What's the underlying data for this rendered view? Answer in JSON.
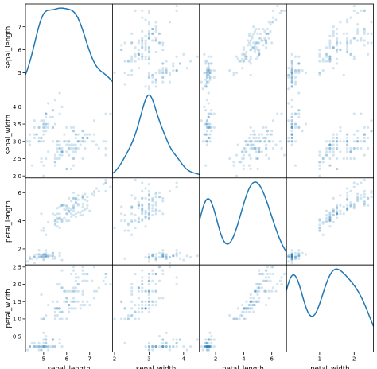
{
  "chart_data": {
    "type": "scatter_matrix",
    "variables": [
      "sepal_length",
      "sepal_width",
      "petal_length",
      "petal_width"
    ],
    "ranges": {
      "sepal_length": [
        4.3,
        7.9
      ],
      "sepal_width": [
        2.0,
        4.4
      ],
      "petal_length": [
        1.0,
        6.9
      ],
      "petal_width": [
        0.1,
        2.5
      ]
    },
    "ticks": {
      "sepal_length": [
        5,
        6,
        7
      ],
      "sepal_width": [
        2,
        3,
        4
      ],
      "petal_length": [
        2,
        4,
        6
      ],
      "petal_width": [
        1,
        2
      ]
    },
    "left_ticks": {
      "sepal_length": [
        5,
        6,
        7
      ],
      "sepal_width": [
        2.0,
        2.5,
        3.0,
        3.5,
        4.0
      ],
      "petal_length": [
        2,
        4,
        6
      ],
      "petal_width": [
        0.5,
        1.0,
        1.5,
        2.0,
        2.5
      ]
    },
    "left_tick_labels": {
      "sepal_length": [
        "5",
        "6",
        "7"
      ],
      "sepal_width": [
        "2.0",
        "2.5",
        "3.0",
        "3.5",
        "4.0"
      ],
      "petal_length": [
        "2",
        "4",
        "6"
      ],
      "petal_width": [
        "0.5",
        "1.0",
        "1.5",
        "2.0",
        "2.5"
      ]
    },
    "bottom_tick_labels": {
      "sepal_length": [
        "5",
        "6",
        "7"
      ],
      "sepal_width": [
        "2",
        "3",
        "4"
      ],
      "petal_length": [
        "2",
        "4",
        "6"
      ],
      "petal_width": [
        "1",
        "2"
      ]
    },
    "diagonal": "kde",
    "point_color": "#1f77b4",
    "point_alpha": 0.2,
    "line_color": "#1f77b4",
    "columns": [
      "5.1,3.5,1.4,0.2 4.9,3.0,1.4,0.2 4.7,3.2,1.3,0.2 4.6,3.1,1.5,0.2 5.0,3.6,1.4,0.2 5.4,3.9,1.7,0.4 4.6,3.4,1.4,0.3 5.0,3.4,1.5,0.2 4.4,2.9,1.4,0.2 4.9,3.1,1.5,0.1 5.4,3.7,1.5,0.2 4.8,3.4,1.6,0.2 4.8,3.0,1.4,0.1 4.3,3.0,1.1,0.1 5.8,4.0,1.2,0.2 5.7,4.4,1.5,0.4 5.4,3.9,1.3,0.4 5.1,3.5,1.4,0.3 5.7,3.8,1.7,0.3 5.1,3.8,1.5,0.3 5.4,3.4,1.7,0.2 5.1,3.7,1.5,0.4 4.6,3.6,1.0,0.2 5.1,3.3,1.7,0.5 4.8,3.4,1.9,0.2 5.0,3.0,1.6,0.2 5.0,3.4,1.6,0.4 5.2,3.5,1.5,0.2 5.2,3.4,1.4,0.2 4.7,3.2,1.6,0.2 4.8,3.1,1.6,0.2 5.4,3.4,1.5,0.4 5.2,4.1,1.5,0.1 5.5,4.2,1.4,0.2 4.9,3.1,1.5,0.2 5.0,3.2,1.2,0.2 5.5,3.5,1.3,0.2 4.9,3.6,1.4,0.1 4.4,3.0,1.3,0.2 5.1,3.4,1.5,0.2 5.0,3.5,1.3,0.3 4.5,2.3,1.3,0.3 4.4,3.2,1.3,0.2 5.0,3.5,1.6,0.6 5.1,3.8,1.9,0.4 4.8,3.0,1.4,0.3 5.1,3.8,1.6,0.2 4.6,3.2,1.4,0.2 5.3,3.7,1.5,0.2 5.0,3.3,1.4,0.2",
      "7.0,3.2,4.7,1.4 6.4,3.2,4.5,1.5 6.9,3.1,4.9,1.5 5.5,2.3,4.0,1.3 6.5,2.8,4.6,1.5 5.7,2.8,4.5,1.3 6.3,3.3,4.7,1.6 4.9,2.4,3.3,1.0 6.6,2.9,4.6,1.3 5.2,2.7,3.9,1.4 5.0,2.0,3.5,1.0 5.9,3.0,4.2,1.5 6.0,2.2,4.0,1.0 6.1,2.9,4.7,1.4 5.6,2.9,3.6,1.3 6.7,3.1,4.4,1.4 5.6,3.0,4.5,1.5 5.8,2.7,4.1,1.0 6.2,2.2,4.5,1.5 5.6,2.5,3.9,1.1 5.9,3.2,4.8,1.8 6.1,2.8,4.0,1.3 6.3,2.5,4.9,1.5 6.1,2.8,4.7,1.2 6.4,2.9,4.3,1.3 6.6,3.0,4.4,1.4 6.8,2.8,4.8,1.4 6.7,3.0,5.0,1.7 6.0,2.9,4.5,1.5 5.7,2.6,3.5,1.0 5.5,2.4,3.8,1.1 5.5,2.4,3.7,1.0 5.8,2.7,3.9,1.2 6.0,2.7,5.1,1.6 5.4,3.0,4.5,1.5 6.0,3.4,4.5,1.6 6.7,3.1,4.7,1.5 6.3,2.3,4.4,1.3 5.6,3.0,4.1,1.3 5.5,2.5,4.0,1.3 5.5,2.6,4.4,1.2 6.1,3.0,4.6,1.4 5.8,2.6,4.0,1.2 5.0,2.3,3.3,1.0 5.6,2.7,4.2,1.3 5.7,3.0,4.2,1.2 5.7,2.9,4.2,1.3 6.2,2.9,4.3,1.3 5.1,2.5,3.0,1.1 5.7,2.8,4.1,1.3",
      "6.3,3.3,6.0,2.5 5.8,2.7,5.1,1.9 7.1,3.0,5.9,2.1 6.3,2.9,5.6,1.8 6.5,3.0,5.8,2.2 7.6,3.0,6.6,2.1 4.9,2.5,4.5,1.7 7.3,2.9,6.3,1.8 6.7,2.5,5.8,1.8 7.2,3.6,6.1,2.5 6.5,3.2,5.1,2.0 6.4,2.7,5.3,1.9 6.8,3.0,5.5,2.1 5.7,2.5,5.0,2.0 5.8,2.8,5.1,2.4 6.4,3.2,5.3,2.3 6.5,3.0,5.5,1.8 7.7,3.8,6.7,2.2 7.7,2.6,6.9,2.3 6.0,2.2,5.0,1.5 6.9,3.2,5.7,2.3 5.6,2.8,4.9,2.0 7.7,2.8,6.7,2.0 6.3,2.7,4.9,1.8 6.7,3.3,5.7,2.1 7.2,3.2,6.0,1.8 6.2,2.8,4.8,1.8 6.1,3.0,4.9,1.8 6.4,2.8,5.6,2.1 7.2,3.0,5.8,1.6 7.4,2.8,6.1,1.9 7.9,3.8,6.4,2.0 6.4,2.8,5.6,2.2 6.3,2.8,5.1,1.5 6.1,2.6,5.6,1.4 7.7,3.0,6.1,2.3 6.3,3.4,5.6,2.4 6.4,3.1,5.5,1.8 6.0,3.0,4.8,1.8 6.9,3.1,5.4,2.1 6.7,3.1,5.6,2.4 6.9,3.1,5.1,2.3 5.8,2.7,5.1,1.9 6.8,3.2,5.9,2.3 6.7,3.3,5.7,2.5 6.7,3.0,5.2,2.3 6.3,2.5,5.0,1.9 6.5,3.0,5.2,2.0 6.2,3.4,5.4,2.3 5.9,3.0,5.1,1.8"
    ]
  }
}
